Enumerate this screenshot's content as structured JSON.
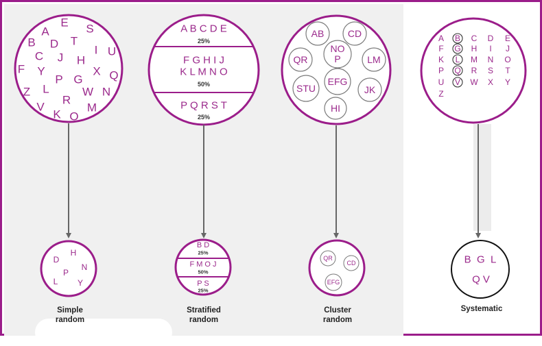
{
  "colors": {
    "accent": "#9b1d8a",
    "letters": "#9b2a8c",
    "arrow": "#666666",
    "small_circle": "#7a7a7a",
    "panel_bg": "#f0f0f0"
  },
  "simple": {
    "population_letters": [
      "A",
      "E",
      "S",
      "B",
      "D",
      "T",
      "C",
      "J",
      "I",
      "U",
      "H",
      "F",
      "Y",
      "X",
      "Q",
      "P",
      "G",
      "Z",
      "L",
      "W",
      "N",
      "R",
      "V",
      "M",
      "K",
      "O"
    ],
    "sample_letters": [
      "D",
      "H",
      "N",
      "P",
      "L",
      "Y"
    ],
    "caption_line1": "Simple",
    "caption_line2": "random"
  },
  "stratified": {
    "strata": [
      {
        "lines": [
          "A B C D E"
        ],
        "pct": "25%"
      },
      {
        "lines": [
          "F G H I J",
          "K L M N O"
        ],
        "pct": "50%"
      },
      {
        "lines": [
          "P Q R S T"
        ],
        "pct": "25%"
      }
    ],
    "sample_strata": [
      {
        "letters": "B D",
        "pct": "25%"
      },
      {
        "letters": "F M O J",
        "pct": "50%"
      },
      {
        "letters": "P S",
        "pct": "25%"
      }
    ],
    "caption_line1": "Stratified",
    "caption_line2": "random"
  },
  "cluster": {
    "clusters": [
      "AB",
      "CD",
      "QR",
      "NO P",
      "LM",
      "STU",
      "EFG",
      "JK",
      "HI"
    ],
    "sample_clusters": [
      "QR",
      "CD",
      "EFG"
    ],
    "caption_line1": "Cluster",
    "caption_line2": "random"
  },
  "systematic": {
    "grid": [
      [
        "A",
        "B",
        "C",
        "D",
        "E"
      ],
      [
        "F",
        "G",
        "H",
        "I",
        "J"
      ],
      [
        "K",
        "L",
        "M",
        "N",
        "O"
      ],
      [
        "P",
        "Q",
        "R",
        "S",
        "T"
      ],
      [
        "U",
        "V",
        "W",
        "X",
        "Y"
      ],
      [
        "Z"
      ]
    ],
    "circled": [
      "B",
      "G",
      "L",
      "Q",
      "V"
    ],
    "sample_line1": "B  G  L",
    "sample_line2": "Q V",
    "caption": "Systematic"
  }
}
